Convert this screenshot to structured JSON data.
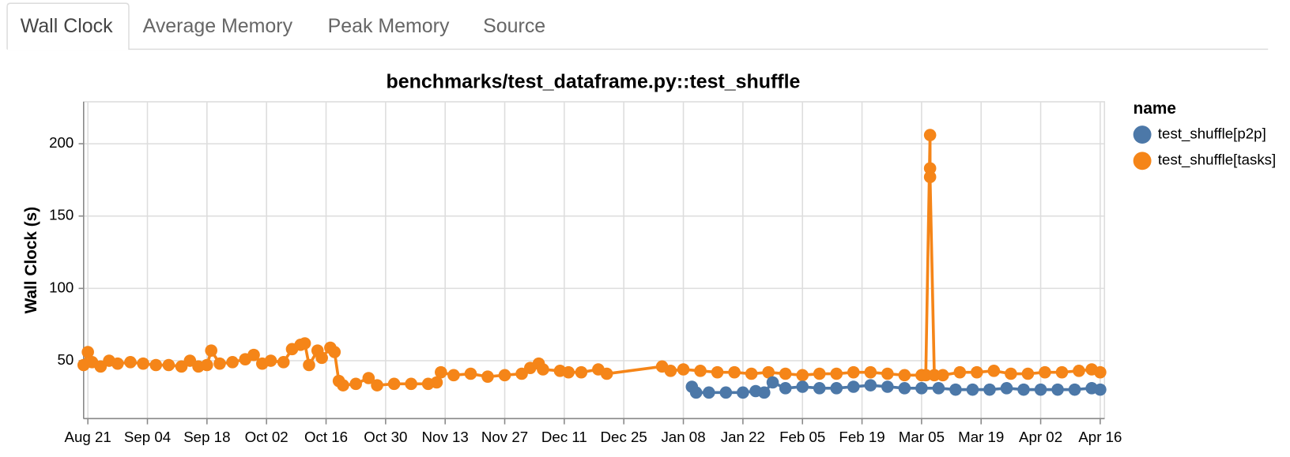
{
  "tabs": [
    "Wall Clock",
    "Average Memory",
    "Peak Memory",
    "Source"
  ],
  "active_tab": 0,
  "chart_data": {
    "type": "line",
    "title": "benchmarks/test_dataframe.py::test_shuffle",
    "y_label": "Wall Clock (s)",
    "legend_title": "name",
    "legend_position": "right",
    "grid": true,
    "xlim": [
      "Aug 20",
      "Apr 17"
    ],
    "xticks": [
      "Aug 21",
      "Sep 04",
      "Sep 18",
      "Oct 02",
      "Oct 16",
      "Oct 30",
      "Nov 13",
      "Nov 27",
      "Dec 11",
      "Dec 25",
      "Jan 08",
      "Jan 22",
      "Feb 05",
      "Feb 19",
      "Mar 05",
      "Mar 19",
      "Apr 02",
      "Apr 16"
    ],
    "ylim": [
      10,
      229
    ],
    "yticks": [
      50,
      100,
      150,
      200
    ],
    "series": [
      {
        "name": "test_shuffle[p2p]",
        "color": "#4c78a8",
        "x": [
          "Jan 10",
          "Jan 11",
          "Jan 14",
          "Jan 18",
          "Jan 22",
          "Jan 25",
          "Jan 27",
          "Jan 29",
          "Feb 01",
          "Feb 05",
          "Feb 09",
          "Feb 13",
          "Feb 17",
          "Feb 21",
          "Feb 25",
          "Mar 01",
          "Mar 05",
          "Mar 09",
          "Mar 13",
          "Mar 17",
          "Mar 21",
          "Mar 25",
          "Mar 29",
          "Apr 02",
          "Apr 06",
          "Apr 10",
          "Apr 14",
          "Apr 16"
        ],
        "values": [
          32,
          28,
          28,
          28,
          28,
          29,
          28,
          35,
          31,
          32,
          31,
          31,
          32,
          33,
          32,
          31,
          31,
          31,
          30,
          30,
          30,
          31,
          30,
          30,
          30,
          30,
          31,
          30
        ]
      },
      {
        "name": "test_shuffle[tasks]",
        "color": "#f58518",
        "x": [
          "Aug 20",
          "Aug 21",
          "Aug 22",
          "Aug 24",
          "Aug 26",
          "Aug 28",
          "Aug 31",
          "Sep 03",
          "Sep 06",
          "Sep 09",
          "Sep 12",
          "Sep 14",
          "Sep 16",
          "Sep 18",
          "Sep 19",
          "Sep 21",
          "Sep 24",
          "Sep 27",
          "Sep 29",
          "Oct 01",
          "Oct 03",
          "Oct 06",
          "Oct 08",
          "Oct 10",
          "Oct 11",
          "Oct 12",
          "Oct 14",
          "Oct 15",
          "Oct 17",
          "Oct 18",
          "Oct 19",
          "Oct 20",
          "Oct 23",
          "Oct 26",
          "Oct 28",
          "Nov 01",
          "Nov 05",
          "Nov 09",
          "Nov 11",
          "Nov 12",
          "Nov 15",
          "Nov 19",
          "Nov 23",
          "Nov 27",
          "Dec 01",
          "Dec 03",
          "Dec 05",
          "Dec 06",
          "Dec 10",
          "Dec 12",
          "Dec 15",
          "Dec 19",
          "Dec 21",
          "Jan 03",
          "Jan 05",
          "Jan 08",
          "Jan 12",
          "Jan 16",
          "Jan 20",
          "Jan 24",
          "Jan 28",
          "Feb 01",
          "Feb 05",
          "Feb 09",
          "Feb 13",
          "Feb 17",
          "Feb 21",
          "Feb 25",
          "Mar 01",
          "Mar 05",
          "Mar 06",
          "Mar 07",
          "Mar 07",
          "Mar 07",
          "Mar 08",
          "Mar 10",
          "Mar 14",
          "Mar 18",
          "Mar 22",
          "Mar 26",
          "Mar 30",
          "Apr 03",
          "Apr 07",
          "Apr 11",
          "Apr 14",
          "Apr 16"
        ],
        "values": [
          47,
          56,
          49,
          46,
          50,
          48,
          49,
          48,
          47,
          47,
          46,
          50,
          46,
          47,
          57,
          48,
          49,
          51,
          54,
          48,
          50,
          49,
          58,
          61,
          62,
          47,
          57,
          52,
          59,
          56,
          36,
          33,
          34,
          38,
          33,
          34,
          34,
          34,
          35,
          42,
          40,
          41,
          39,
          40,
          41,
          45,
          48,
          44,
          43,
          42,
          42,
          44,
          41,
          46,
          43,
          44,
          43,
          42,
          42,
          41,
          42,
          41,
          40,
          41,
          41,
          42,
          42,
          41,
          40,
          40,
          40,
          206,
          183,
          177,
          40,
          40,
          42,
          42,
          43,
          41,
          41,
          42,
          42,
          43,
          44,
          42
        ]
      }
    ]
  }
}
